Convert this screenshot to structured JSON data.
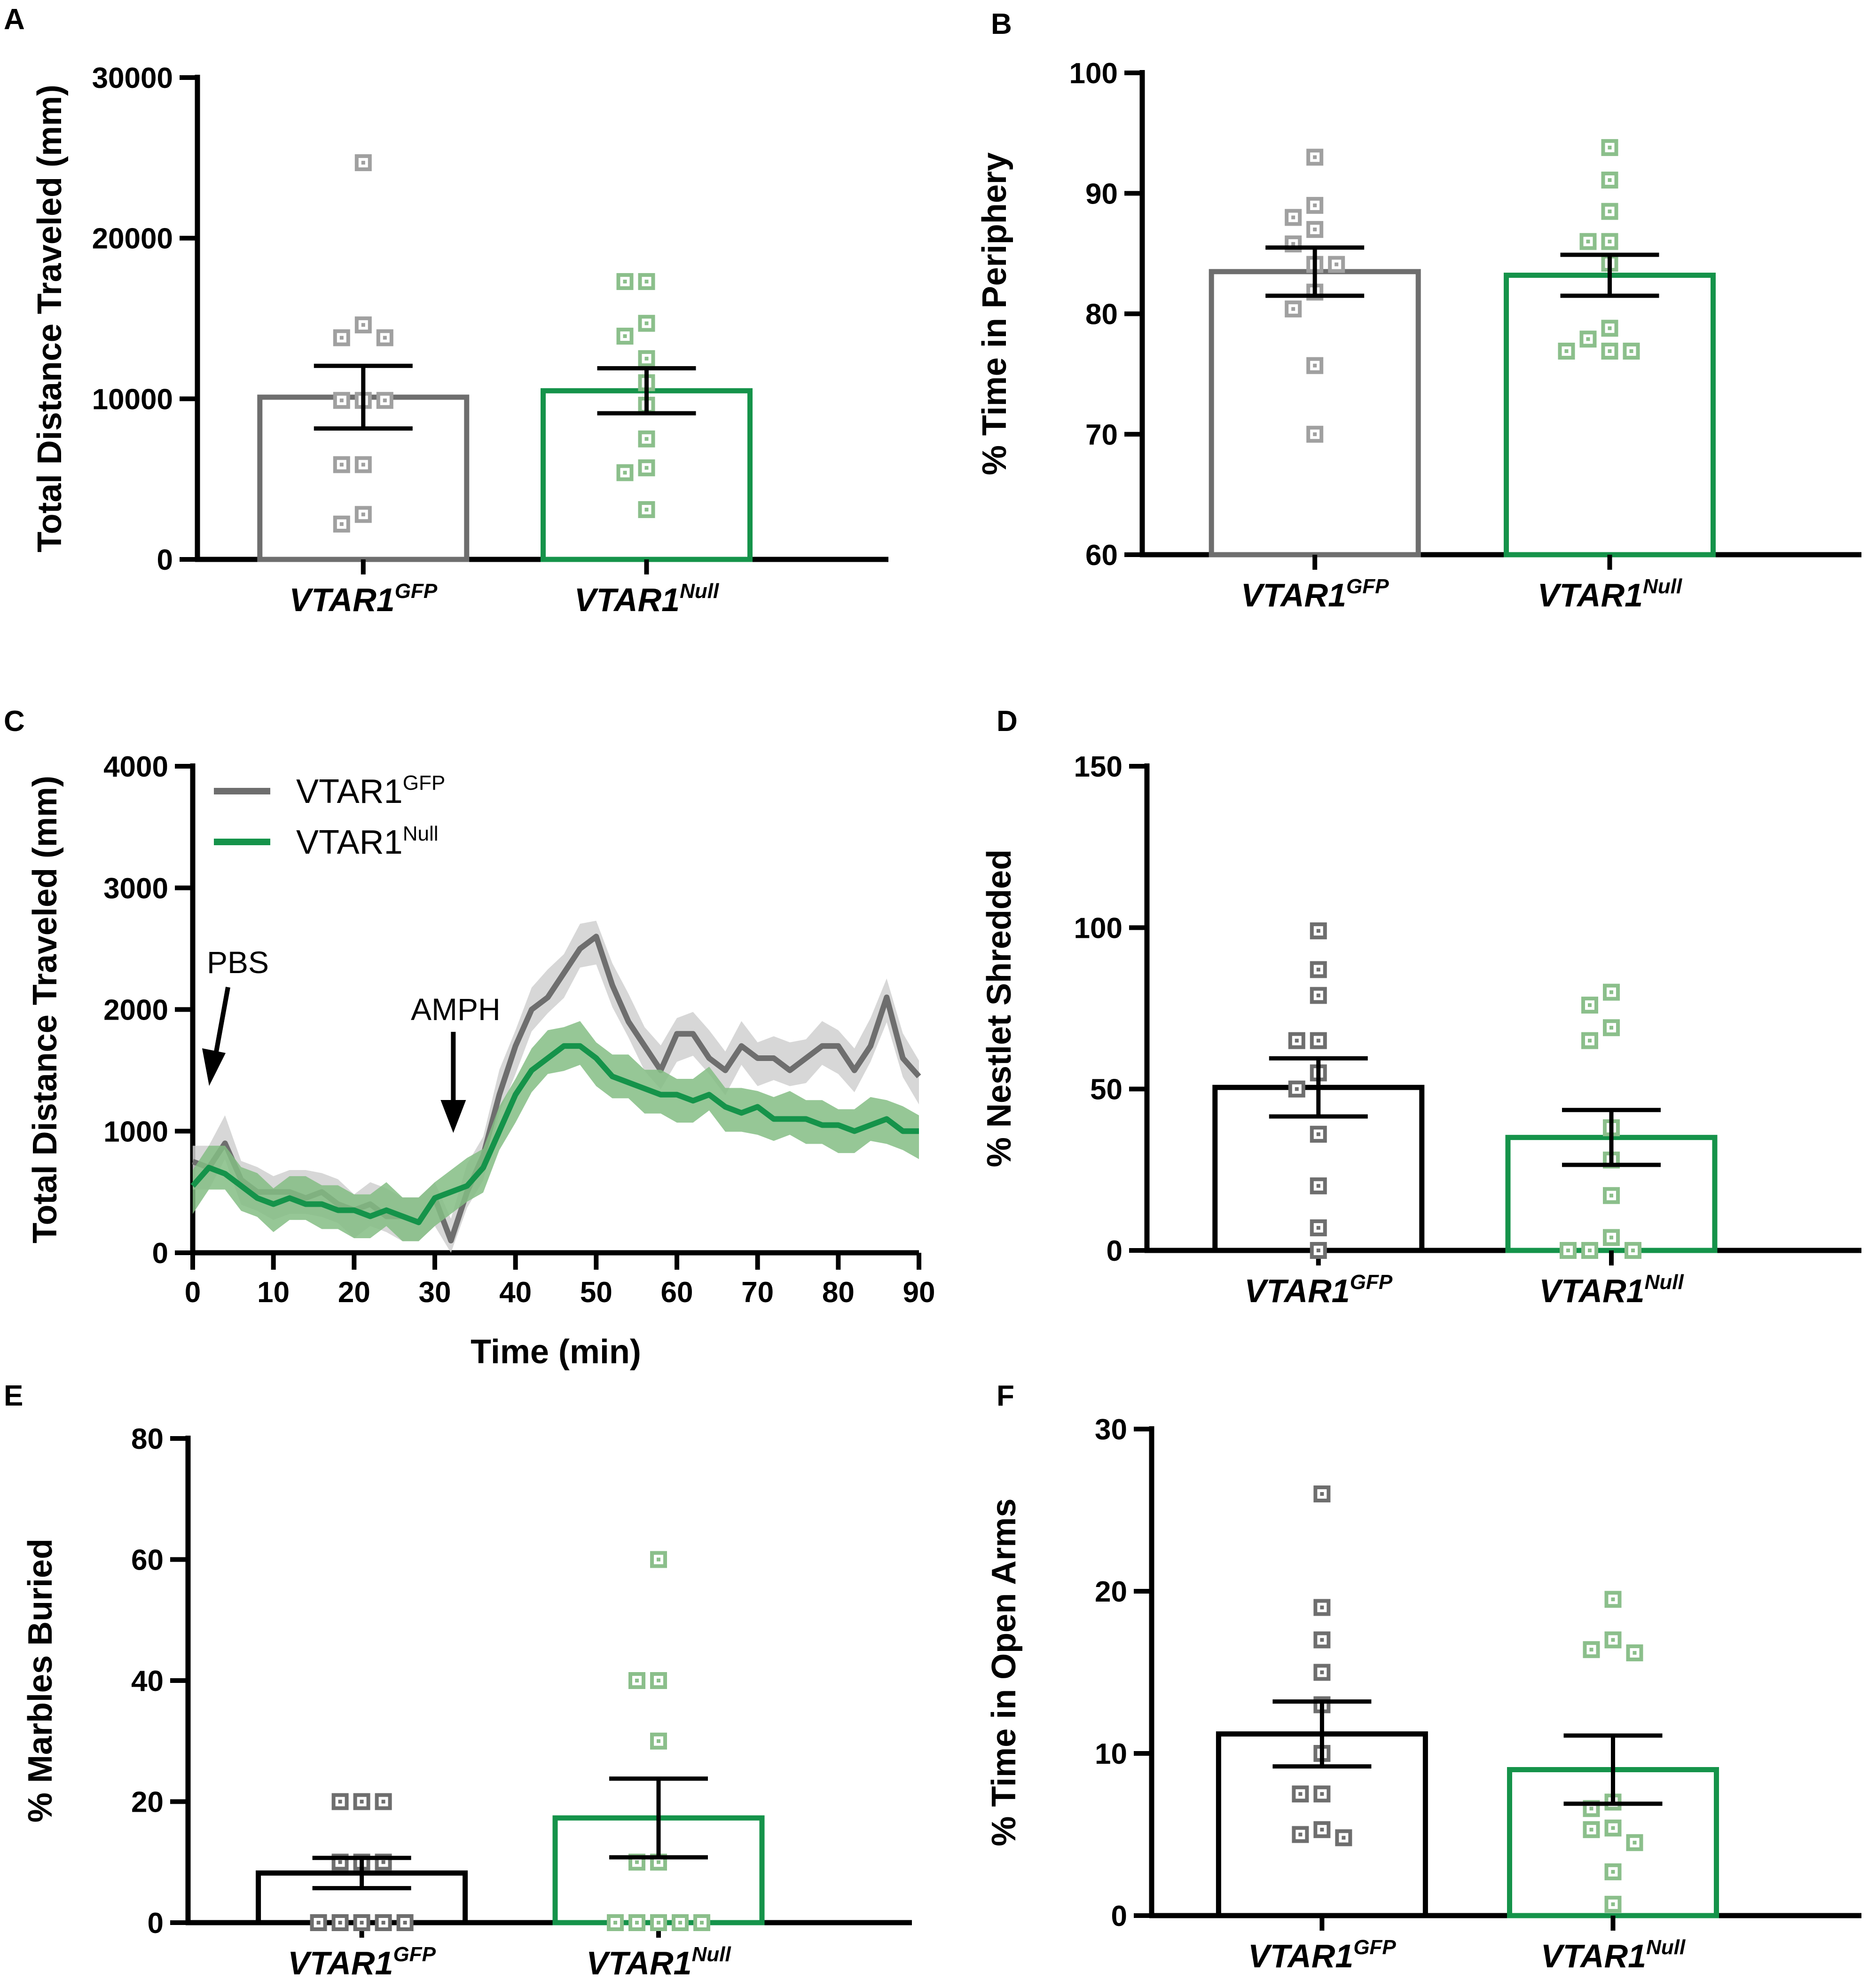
{
  "colors": {
    "gfp": "#6e6e6e",
    "gfp_light": "#a0a0a0",
    "gfp_band": "#d0d0d0",
    "nul": "#15934a",
    "nul_light": "#8bbf8b",
    "nul_band": "#84bd84",
    "black": "#000000"
  },
  "chart_data": [
    {
      "panel": "A",
      "type": "bar",
      "ylabel": "Total Distance Traveled (mm)",
      "ylim": [
        0,
        30000
      ],
      "yticks": [
        0,
        10000,
        20000,
        30000
      ],
      "ytick_labels": [
        "0",
        "10000",
        "20000",
        "30000"
      ],
      "categories": [
        {
          "base": "VTAR1",
          "sup": "GFP"
        },
        {
          "base": "VTAR1",
          "sup": "Null"
        }
      ],
      "series": [
        {
          "name": "VTAR1GFP",
          "mean": 10100,
          "sem": 1950,
          "color_key": "gfp",
          "point_color_key": "gfp_light",
          "points": [
            24700,
            14600,
            13800,
            13800,
            9900,
            9900,
            9900,
            5900,
            5900,
            2800,
            2200
          ]
        },
        {
          "name": "VTAR1Null",
          "mean": 10500,
          "sem": 1400,
          "color_key": "nul",
          "point_color_key": "nul_light",
          "points": [
            17300,
            17300,
            14700,
            13900,
            12500,
            11000,
            9600,
            7500,
            5700,
            5400,
            3100
          ]
        }
      ]
    },
    {
      "panel": "B",
      "type": "bar",
      "ylabel": "% Time in Periphery",
      "ylim": [
        60,
        100
      ],
      "yticks": [
        60,
        70,
        80,
        90,
        100
      ],
      "ytick_labels": [
        "60",
        "70",
        "80",
        "90",
        "100"
      ],
      "categories": [
        {
          "base": "VTAR1",
          "sup": "GFP"
        },
        {
          "base": "VTAR1",
          "sup": "Null"
        }
      ],
      "series": [
        {
          "name": "VTAR1GFP",
          "mean": 83.5,
          "sem": 2.0,
          "color_key": "gfp",
          "point_color_key": "gfp_light",
          "points": [
            93,
            89,
            88,
            87,
            85.8,
            84.1,
            84.1,
            81.8,
            80.4,
            75.7,
            70
          ]
        },
        {
          "name": "VTAR1Null",
          "mean": 83.2,
          "sem": 1.7,
          "color_key": "nul",
          "point_color_key": "nul_light",
          "points": [
            93.8,
            91.1,
            88.5,
            86,
            86,
            84.2,
            78.8,
            77.9,
            76.9,
            76.9,
            76.9
          ]
        }
      ]
    },
    {
      "panel": "C",
      "type": "line",
      "xlabel": "Time (min)",
      "ylabel": "Total Distance Traveled (mm)",
      "xlim": [
        0,
        90
      ],
      "ylim": [
        0,
        4000
      ],
      "xticks": [
        0,
        10,
        20,
        30,
        40,
        50,
        60,
        70,
        80,
        90
      ],
      "xtick_labels": [
        "0",
        "10",
        "20",
        "30",
        "40",
        "50",
        "60",
        "70",
        "80",
        "90"
      ],
      "yticks": [
        0,
        1000,
        2000,
        3000,
        4000
      ],
      "ytick_labels": [
        "0",
        "1000",
        "2000",
        "3000",
        "4000"
      ],
      "legend": [
        {
          "base": "VTAR1",
          "sup": "GFP",
          "color_key": "gfp"
        },
        {
          "base": "VTAR1",
          "sup": "Null",
          "color_key": "nul"
        }
      ],
      "annotations": [
        {
          "text": "PBS",
          "time": 2
        },
        {
          "text": "AMPH",
          "time": 32
        }
      ],
      "series": [
        {
          "name": "VTAR1GFP",
          "color_key": "gfp",
          "band_color_key": "gfp_band",
          "band_sem": 180,
          "x": [
            0,
            2,
            4,
            6,
            8,
            10,
            12,
            14,
            16,
            18,
            20,
            22,
            24,
            26,
            28,
            30,
            32,
            34,
            36,
            38,
            40,
            42,
            44,
            46,
            48,
            50,
            52,
            54,
            56,
            58,
            60,
            62,
            64,
            66,
            68,
            70,
            72,
            74,
            76,
            78,
            80,
            82,
            84,
            86,
            88,
            90
          ],
          "y": [
            750,
            700,
            900,
            600,
            500,
            500,
            500,
            450,
            500,
            400,
            350,
            400,
            300,
            300,
            250,
            450,
            100,
            500,
            800,
            1300,
            1700,
            2000,
            2100,
            2300,
            2500,
            2600,
            2200,
            1900,
            1700,
            1500,
            1800,
            1800,
            1600,
            1500,
            1700,
            1600,
            1600,
            1500,
            1600,
            1700,
            1700,
            1500,
            1700,
            2100,
            1600,
            1450
          ]
        },
        {
          "name": "VTAR1Null",
          "color_key": "nul",
          "band_color_key": "nul_band",
          "band_sem": 180,
          "x": [
            0,
            2,
            4,
            6,
            8,
            10,
            12,
            14,
            16,
            18,
            20,
            22,
            24,
            26,
            28,
            30,
            32,
            34,
            36,
            38,
            40,
            42,
            44,
            46,
            48,
            50,
            52,
            54,
            56,
            58,
            60,
            62,
            64,
            66,
            68,
            70,
            72,
            74,
            76,
            78,
            80,
            82,
            84,
            86,
            88,
            90
          ],
          "y": [
            550,
            700,
            650,
            550,
            450,
            400,
            450,
            400,
            400,
            350,
            350,
            300,
            350,
            300,
            250,
            450,
            500,
            550,
            700,
            1000,
            1300,
            1500,
            1600,
            1700,
            1700,
            1600,
            1450,
            1400,
            1350,
            1300,
            1300,
            1250,
            1300,
            1200,
            1150,
            1200,
            1100,
            1100,
            1100,
            1050,
            1050,
            1000,
            1050,
            1100,
            1000,
            1000
          ]
        }
      ]
    },
    {
      "panel": "D",
      "type": "bar",
      "ylabel": "% Nestlet Shredded",
      "ylim": [
        0,
        150
      ],
      "yticks": [
        0,
        50,
        100,
        150
      ],
      "ytick_labels": [
        "0",
        "50",
        "100",
        "150"
      ],
      "categories": [
        {
          "base": "VTAR1",
          "sup": "GFP"
        },
        {
          "base": "VTAR1",
          "sup": "Null"
        }
      ],
      "series": [
        {
          "name": "VTAR1GFP",
          "mean": 50.5,
          "sem": 9.0,
          "color_key": "black",
          "point_color_key": "gfp",
          "points": [
            99,
            87,
            79,
            65,
            65,
            55,
            50,
            36,
            20,
            7,
            0
          ]
        },
        {
          "name": "VTAR1Null",
          "mean": 35,
          "sem": 8.5,
          "color_key": "nul",
          "point_color_key": "nul_light",
          "points": [
            80,
            76,
            69,
            65,
            38,
            28,
            17,
            4,
            0,
            0,
            0
          ]
        }
      ]
    },
    {
      "panel": "E",
      "type": "bar",
      "ylabel": "% Marbles Buried",
      "ylim": [
        0,
        80
      ],
      "yticks": [
        0,
        20,
        40,
        60,
        80
      ],
      "ytick_labels": [
        "0",
        "20",
        "40",
        "60",
        "80"
      ],
      "categories": [
        {
          "base": "VTAR1",
          "sup": "GFP"
        },
        {
          "base": "VTAR1",
          "sup": "Null"
        }
      ],
      "series": [
        {
          "name": "VTAR1GFP",
          "mean": 8.2,
          "sem": 2.5,
          "color_key": "black",
          "point_color_key": "gfp",
          "points": [
            20,
            20,
            20,
            10,
            10,
            10,
            0,
            0,
            0,
            0,
            0
          ]
        },
        {
          "name": "VTAR1Null",
          "mean": 17.3,
          "sem": 6.5,
          "color_key": "nul",
          "point_color_key": "nul_light",
          "points": [
            60,
            40,
            40,
            30,
            10,
            10,
            0,
            0,
            0,
            0,
            0
          ]
        }
      ]
    },
    {
      "panel": "F",
      "type": "bar",
      "ylabel": "% Time in Open Arms",
      "ylim": [
        0,
        30
      ],
      "yticks": [
        0,
        10,
        20,
        30
      ],
      "ytick_labels": [
        "0",
        "10",
        "20",
        "30"
      ],
      "categories": [
        {
          "base": "VTAR1",
          "sup": "GFP"
        },
        {
          "base": "VTAR1",
          "sup": "Null"
        }
      ],
      "series": [
        {
          "name": "VTAR1GFP",
          "mean": 11.2,
          "sem": 2.0,
          "color_key": "black",
          "point_color_key": "gfp",
          "points": [
            26,
            19,
            17,
            15,
            13,
            10,
            7.5,
            7.5,
            5.3,
            5.0,
            4.8
          ]
        },
        {
          "name": "VTAR1Null",
          "mean": 9.0,
          "sem": 2.1,
          "color_key": "nul",
          "point_color_key": "nul_light",
          "points": [
            19.5,
            17,
            16.4,
            16.2,
            7,
            6.6,
            5.4,
            5.3,
            4.5,
            2.7,
            0.7
          ]
        }
      ]
    }
  ]
}
